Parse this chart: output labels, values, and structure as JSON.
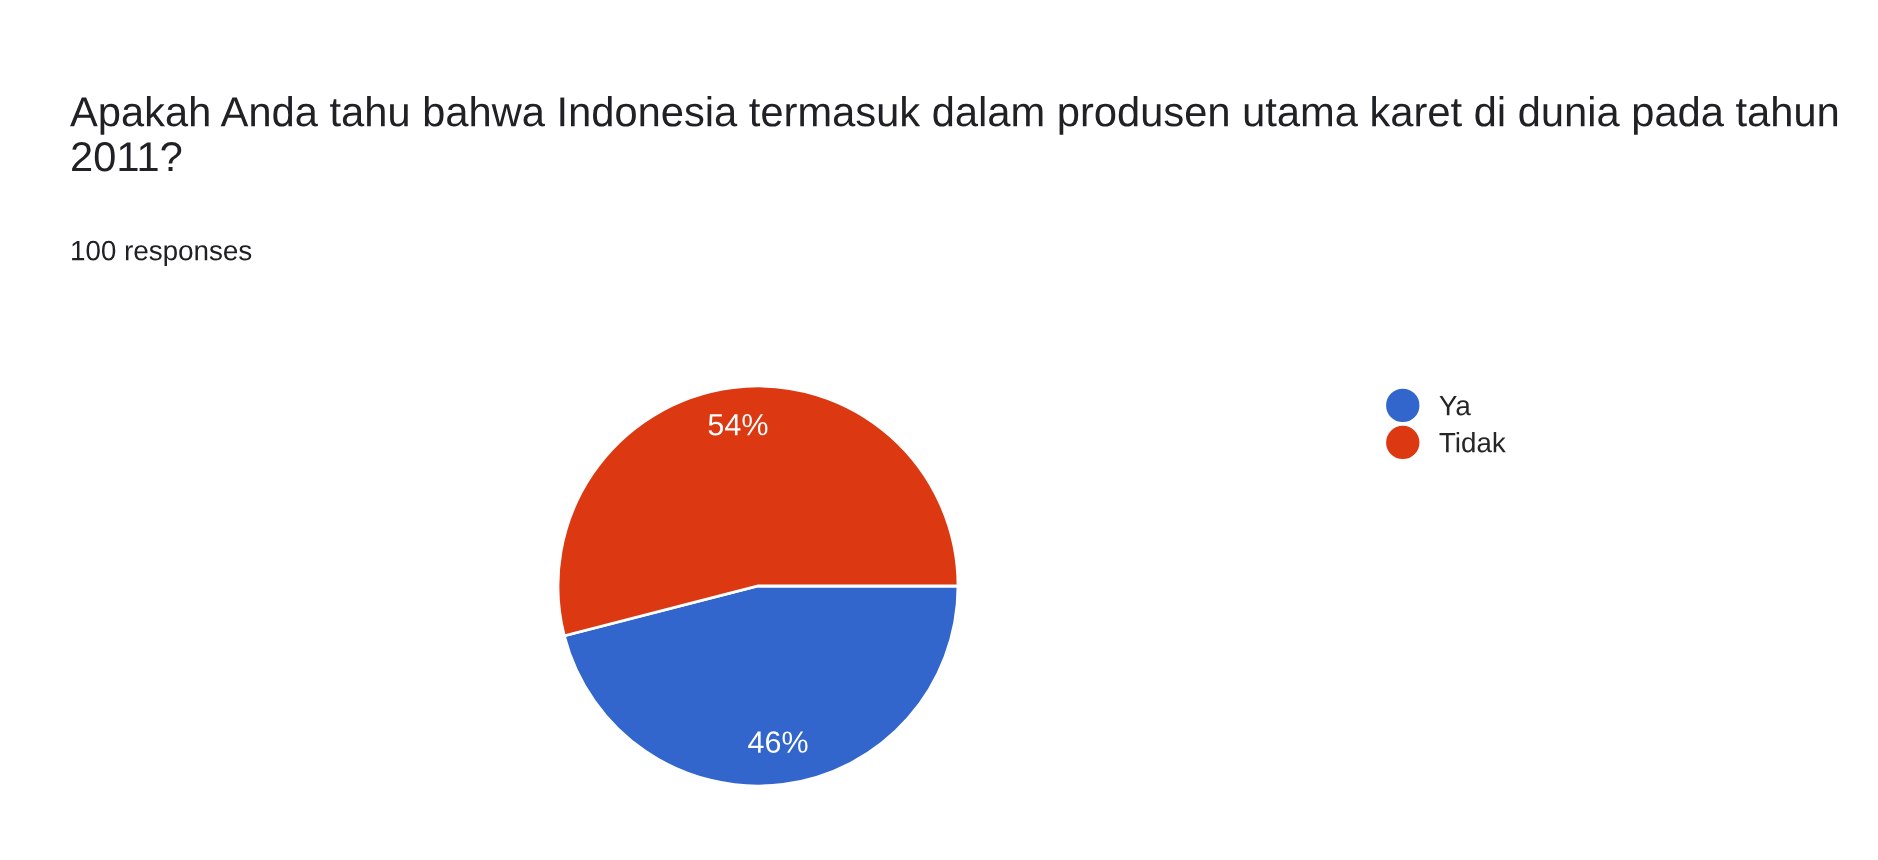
{
  "chart_data": {
    "type": "pie",
    "title": "Apakah Anda tahu bahwa Indonesia termasuk dalam produsen utama karet di dunia pada tahun 2011?",
    "subtitle": "100 responses",
    "categories": [
      "Ya",
      "Tidak"
    ],
    "values": [
      46,
      54
    ],
    "colors": [
      "#3366cc",
      "#dc3912"
    ],
    "value_labels": [
      "46%",
      "54%"
    ],
    "legend": "top right"
  }
}
